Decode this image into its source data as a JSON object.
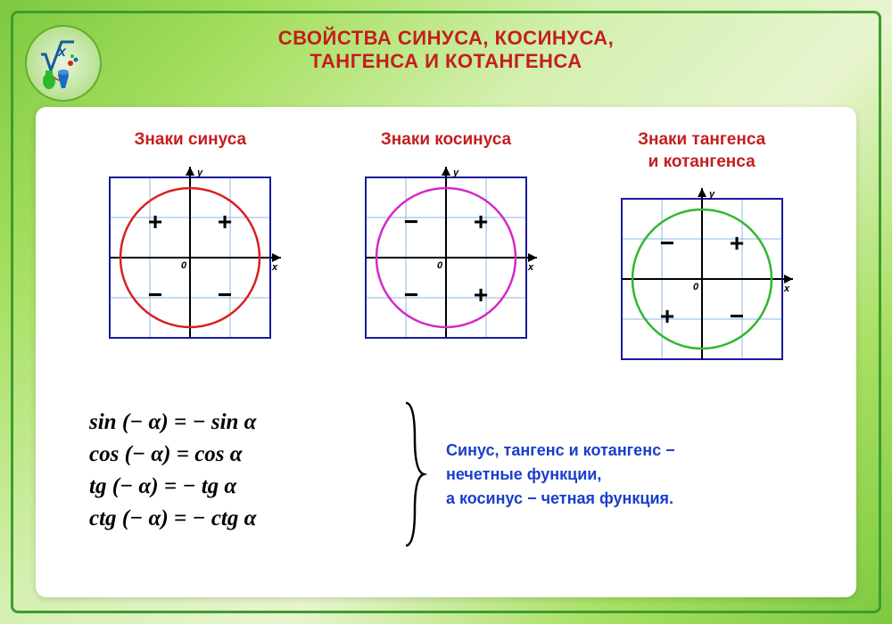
{
  "title": {
    "line1": "СВОЙСТВА СИНУСА, КОСИНУСА,",
    "line2": "ТАНГЕНСА И КОТАНГЕНСА",
    "color": "#c41e1e",
    "fontsize": 22
  },
  "charts": [
    {
      "label": "Знаки синуса",
      "circle_color": "#d82020",
      "quadrants": [
        "+",
        "+",
        "−",
        "−"
      ],
      "label_fontsize": 19
    },
    {
      "label": "Знаки косинуса",
      "circle_color": "#d428c8",
      "quadrants": [
        "−",
        "+",
        "−",
        "+"
      ],
      "label_fontsize": 19
    },
    {
      "label": "Знаки тангенса\nи котангенса",
      "circle_color": "#2eb82e",
      "quadrants": [
        "−",
        "+",
        "+",
        "−"
      ],
      "label_fontsize": 19
    }
  ],
  "chart_style": {
    "size": 180,
    "grid_color": "#8bb8e8",
    "border_color": "#1a1a9e",
    "axis_color": "#000000",
    "sign_fontsize": 28,
    "sign_fontweight": "900",
    "axis_label_fontsize": 11,
    "origin_label": "0",
    "x_label": "x",
    "y_label": "y",
    "background": "#ffffff",
    "circle_stroke_width": 2.5,
    "grid_stroke_width": 1,
    "border_stroke_width": 2,
    "axis_stroke_width": 2
  },
  "formulas": [
    "sin (− α) = − sin α",
    "cos (− α) = cos α",
    "tg (− α) = − tg α",
    "ctg (− α) = − ctg α"
  ],
  "formula_style": {
    "fontsize": 25,
    "color": "#000000"
  },
  "note": {
    "line1": "Синус, тангенс и котангенс −",
    "line2": "нечетные функции,",
    "line3": "а косинус − четная функция.",
    "color": "#1a3fcc",
    "fontsize": 18
  },
  "brace_color": "#000000"
}
